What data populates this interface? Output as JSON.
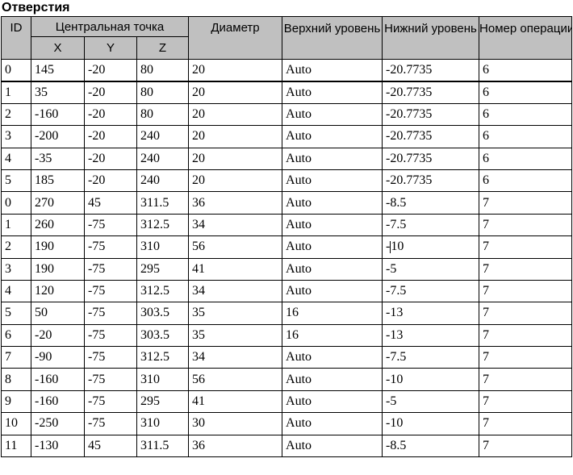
{
  "title": "Отверстия",
  "colors": {
    "header_bg": "#c0c0c0",
    "border": "#000000",
    "text": "#000000",
    "background": "#ffffff"
  },
  "table": {
    "headers": {
      "id": "ID",
      "central_point": "Центральная точка",
      "x": "X",
      "y": "Y",
      "z": "Z",
      "diameter": "Диаметр",
      "upper_level": "Верхний\nуровень",
      "lower_level": "Нижний\nуровень",
      "operation_number": "Номер\nоперации"
    },
    "columns": [
      "id",
      "x",
      "y",
      "z",
      "d",
      "upper",
      "lower",
      "op"
    ],
    "thick_border_after_row": 0,
    "rows": [
      {
        "id": "0",
        "x": "145",
        "y": "-20",
        "z": "80",
        "d": "20",
        "upper": "Auto",
        "lower": "-20.7735",
        "op": "6"
      },
      {
        "id": "1",
        "x": "35",
        "y": "-20",
        "z": "80",
        "d": "20",
        "upper": "Auto",
        "lower": "-20.7735",
        "op": "6"
      },
      {
        "id": "2",
        "x": "-160",
        "y": "-20",
        "z": "80",
        "d": "20",
        "upper": "Auto",
        "lower": "-20.7735",
        "op": "6"
      },
      {
        "id": "3",
        "x": "-200",
        "y": "-20",
        "z": "240",
        "d": "20",
        "upper": "Auto",
        "lower": "-20.7735",
        "op": "6"
      },
      {
        "id": "4",
        "x": "-35",
        "y": "-20",
        "z": "240",
        "d": "20",
        "upper": "Auto",
        "lower": "-20.7735",
        "op": "6"
      },
      {
        "id": "5",
        "x": "185",
        "y": "-20",
        "z": "240",
        "d": "20",
        "upper": "Auto",
        "lower": "-20.7735",
        "op": "6"
      },
      {
        "id": "0",
        "x": "270",
        "y": "45",
        "z": "311.5",
        "d": "36",
        "upper": "Auto",
        "lower": "-8.5",
        "op": "7"
      },
      {
        "id": "1",
        "x": "260",
        "y": "-75",
        "z": "312.5",
        "d": "34",
        "upper": "Auto",
        "lower": "-7.5",
        "op": "7"
      },
      {
        "id": "2",
        "x": "190",
        "y": "-75",
        "z": "310",
        "d": "56",
        "upper": "Auto",
        "lower": "-10",
        "op": "7"
      },
      {
        "id": "3",
        "x": "190",
        "y": "-75",
        "z": "295",
        "d": "41",
        "upper": "Auto",
        "lower": "-5",
        "op": "7"
      },
      {
        "id": "4",
        "x": "120",
        "y": "-75",
        "z": "312.5",
        "d": "34",
        "upper": "Auto",
        "lower": "-7.5",
        "op": "7"
      },
      {
        "id": "5",
        "x": "50",
        "y": "-75",
        "z": "303.5",
        "d": "35",
        "upper": "16",
        "lower": "-13",
        "op": "7"
      },
      {
        "id": "6",
        "x": "-20",
        "y": "-75",
        "z": "303.5",
        "d": "35",
        "upper": "16",
        "lower": "-13",
        "op": "7"
      },
      {
        "id": "7",
        "x": "-90",
        "y": "-75",
        "z": "312.5",
        "d": "34",
        "upper": "Auto",
        "lower": "-7.5",
        "op": "7"
      },
      {
        "id": "8",
        "x": "-160",
        "y": "-75",
        "z": "310",
        "d": "56",
        "upper": "Auto",
        "lower": "-10",
        "op": "7"
      },
      {
        "id": "9",
        "x": "-160",
        "y": "-75",
        "z": "295",
        "d": "41",
        "upper": "Auto",
        "lower": "-5",
        "op": "7"
      },
      {
        "id": "10",
        "x": "-250",
        "y": "-75",
        "z": "310",
        "d": "30",
        "upper": "Auto",
        "lower": "-10",
        "op": "7"
      },
      {
        "id": "11",
        "x": "-130",
        "y": "45",
        "z": "311.5",
        "d": "36",
        "upper": "Auto",
        "lower": "-8.5",
        "op": "7"
      }
    ]
  },
  "caret": {
    "row_index": 8,
    "column": "lower",
    "after_chars": 1
  }
}
